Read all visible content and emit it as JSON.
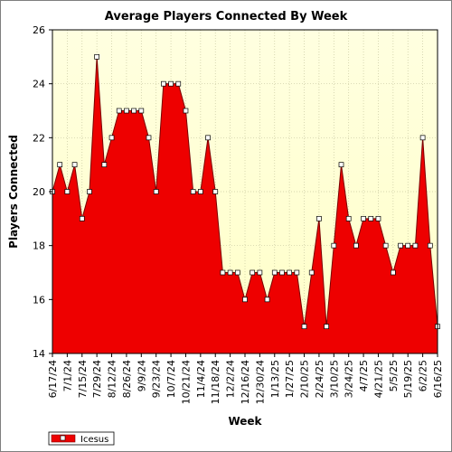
{
  "chart_data": {
    "type": "area",
    "title": "Average Players Connected By Week",
    "xlabel": "Week",
    "ylabel": "Players Connected",
    "ylim": [
      14,
      26
    ],
    "yticks": [
      14,
      16,
      18,
      20,
      22,
      24,
      26
    ],
    "grid": true,
    "legend_placement": "bottom-left",
    "colors": {
      "fill": "#ee0000",
      "line": "#7a0000",
      "plot_bg_top": "#ffffe0",
      "plot_bg_bottom": "#ffffc8",
      "grid": "#c8c8a0",
      "marker_fill": "#ffffff"
    },
    "x_tick_labels": [
      "6/17/24",
      "7/1/24",
      "7/15/24",
      "7/29/24",
      "8/12/24",
      "8/26/24",
      "9/9/24",
      "9/23/24",
      "10/7/24",
      "10/21/24",
      "11/4/24",
      "11/18/24",
      "12/2/24",
      "12/16/24",
      "12/30/24",
      "1/13/25",
      "1/27/25",
      "2/10/25",
      "2/24/25",
      "3/10/25",
      "3/24/25",
      "4/7/25",
      "4/21/25",
      "5/5/25",
      "5/19/25",
      "6/2/25",
      "6/16/25"
    ],
    "series": [
      {
        "name": "Icesus",
        "x": [
          "6/17/24",
          "6/24/24",
          "7/1/24",
          "7/8/24",
          "7/15/24",
          "7/22/24",
          "7/29/24",
          "8/5/24",
          "8/12/24",
          "8/19/24",
          "8/26/24",
          "9/2/24",
          "9/9/24",
          "9/16/24",
          "9/23/24",
          "9/30/24",
          "10/7/24",
          "10/14/24",
          "10/21/24",
          "10/28/24",
          "11/4/24",
          "11/11/24",
          "11/18/24",
          "11/25/24",
          "12/2/24",
          "12/9/24",
          "12/16/24",
          "12/23/24",
          "12/30/24",
          "1/6/25",
          "1/13/25",
          "1/20/25",
          "1/27/25",
          "2/3/25",
          "2/10/25",
          "2/17/25",
          "2/24/25",
          "3/3/25",
          "3/10/25",
          "3/17/25",
          "3/24/25",
          "3/31/25",
          "4/7/25",
          "4/14/25",
          "4/21/25",
          "4/28/25",
          "5/5/25",
          "5/12/25",
          "5/19/25",
          "5/26/25",
          "6/2/25",
          "6/9/25",
          "6/16/25"
        ],
        "values": [
          20,
          21,
          20,
          21,
          19,
          20,
          25,
          21,
          22,
          23,
          23,
          23,
          23,
          22,
          20,
          24,
          24,
          24,
          23,
          20,
          20,
          22,
          20,
          17,
          17,
          17,
          16,
          17,
          17,
          16,
          17,
          17,
          17,
          17,
          15,
          17,
          19,
          15,
          18,
          21,
          19,
          18,
          19,
          19,
          19,
          18,
          17,
          18,
          18,
          18,
          22,
          18,
          15
        ]
      }
    ]
  }
}
